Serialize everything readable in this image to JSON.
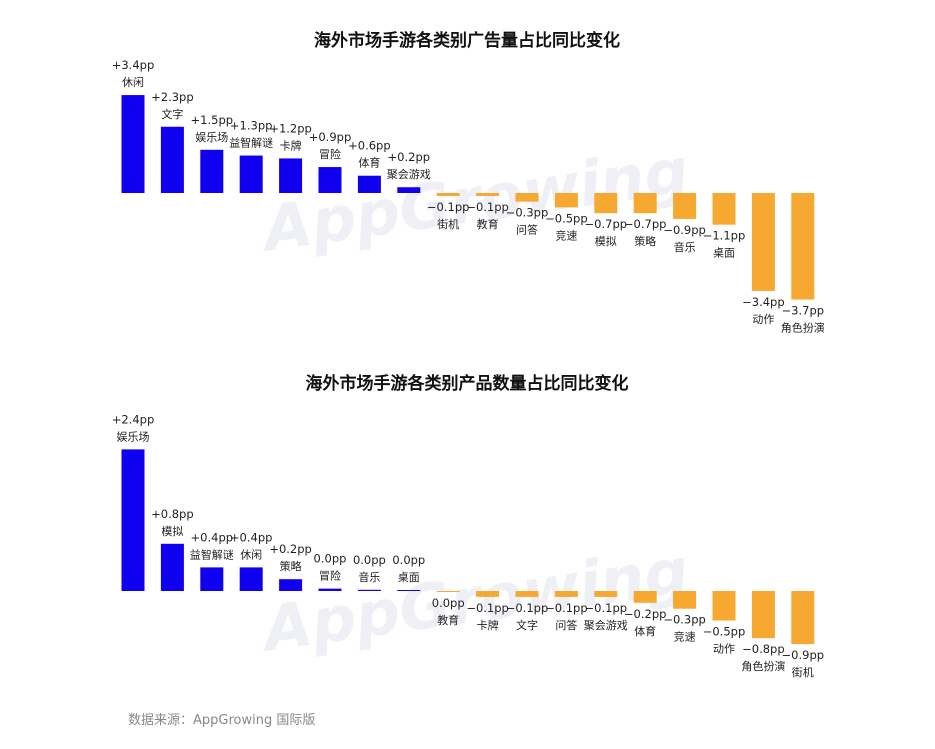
{
  "colors": {
    "positive": "#1000f0",
    "negative": "#f7a830",
    "source_text": "#888888"
  },
  "chart_data": [
    {
      "type": "bar",
      "title": "海外市场手游各类别广告量占比同比变化",
      "xlabel": "",
      "ylabel": "",
      "categories": [
        "休闲",
        "文字",
        "娱乐场",
        "益智解谜",
        "卡牌",
        "冒险",
        "体育",
        "聚会游戏",
        "街机",
        "教育",
        "问答",
        "竞速",
        "模拟",
        "策略",
        "音乐",
        "桌面",
        "动作",
        "角色扮演"
      ],
      "values": [
        3.4,
        2.3,
        1.5,
        1.3,
        1.2,
        0.9,
        0.6,
        0.2,
        -0.1,
        -0.1,
        -0.3,
        -0.5,
        -0.7,
        -0.7,
        -0.9,
        -1.1,
        -3.4,
        -3.7
      ],
      "value_labels": [
        "+3.4pp",
        "+2.3pp",
        "+1.5pp",
        "+1.3pp",
        "+1.2pp",
        "+0.9pp",
        "+0.6pp",
        "+0.2pp",
        "−0.1pp",
        "−0.1pp",
        "−0.3pp",
        "−0.5pp",
        "−0.7pp",
        "−0.7pp",
        "−0.9pp",
        "−1.1pp",
        "−3.4pp",
        "−3.7pp"
      ],
      "unit": "pp",
      "grid": false,
      "legend": "none"
    },
    {
      "type": "bar",
      "title": "海外市场手游各类别产品数量占比同比变化",
      "xlabel": "",
      "ylabel": "",
      "categories": [
        "娱乐场",
        "模拟",
        "益智解谜",
        "休闲",
        "策略",
        "冒险",
        "音乐",
        "桌面",
        "教育",
        "卡牌",
        "文字",
        "问答",
        "聚会游戏",
        "体育",
        "竞速",
        "动作",
        "角色扮演",
        "街机"
      ],
      "values": [
        2.4,
        0.8,
        0.4,
        0.4,
        0.2,
        0.04,
        0.02,
        0.01,
        -0.01,
        -0.1,
        -0.1,
        -0.1,
        -0.1,
        -0.2,
        -0.3,
        -0.5,
        -0.8,
        -0.9
      ],
      "value_labels": [
        "+2.4pp",
        "+0.8pp",
        "+0.4pp",
        "+0.4pp",
        "+0.2pp",
        "0.0pp",
        "0.0pp",
        "0.0pp",
        "0.0pp",
        "−0.1pp",
        "−0.1pp",
        "−0.1pp",
        "−0.1pp",
        "−0.2pp",
        "−0.3pp",
        "−0.5pp",
        "−0.8pp",
        "−0.9pp"
      ],
      "unit": "pp",
      "grid": false,
      "legend": "none"
    }
  ],
  "watermark": "AppGrowing",
  "source": "数据来源：AppGrowing 国际版"
}
